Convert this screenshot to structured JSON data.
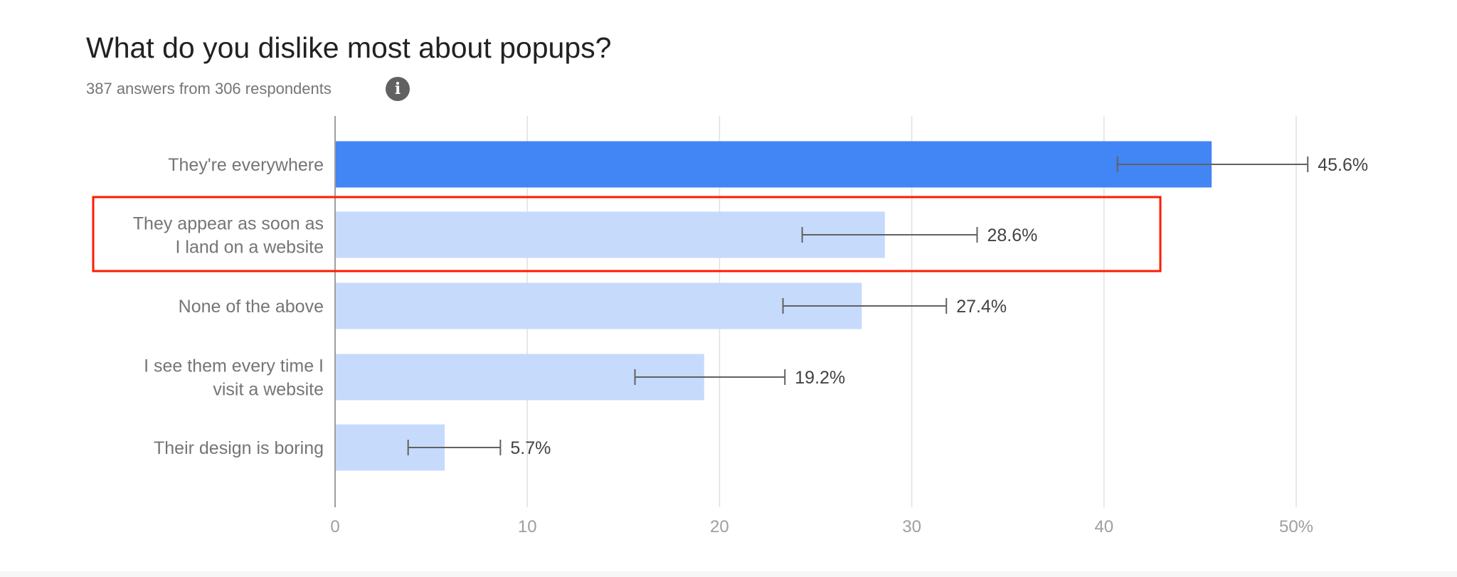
{
  "chart_data": {
    "type": "bar",
    "orientation": "horizontal",
    "title": "What do you dislike most about popups?",
    "subtitle": "387 answers from 306 respondents",
    "categories": [
      [
        "They're everywhere"
      ],
      [
        "They appear as soon as",
        "I land on a website"
      ],
      [
        "None of the above"
      ],
      [
        "I see them every time I",
        "visit a website"
      ],
      [
        "Their design is boring"
      ]
    ],
    "values": [
      45.6,
      28.6,
      27.4,
      19.2,
      5.7
    ],
    "value_labels": [
      "45.6%",
      "28.6%",
      "27.4%",
      "19.2%",
      "5.7%"
    ],
    "error_bars": [
      [
        40.7,
        50.6
      ],
      [
        24.3,
        33.4
      ],
      [
        23.3,
        31.8
      ],
      [
        15.6,
        23.4
      ],
      [
        3.8,
        8.6
      ]
    ],
    "xlim": [
      0,
      50
    ],
    "x_ticks": [
      0,
      10,
      20,
      30,
      40,
      50
    ],
    "x_tick_labels": [
      "0",
      "10",
      "20",
      "30",
      "40",
      "50%"
    ],
    "grid": true,
    "highlighted_index": 0,
    "annotated_index": 1,
    "colors": {
      "highlight": "#4285f4",
      "bar": "#c6dafc",
      "error_bar": "#616161",
      "annotation_box": "#ff1a00",
      "grid": "#e0e0e0"
    }
  },
  "info_icon": "info-icon",
  "info_glyph": "i"
}
